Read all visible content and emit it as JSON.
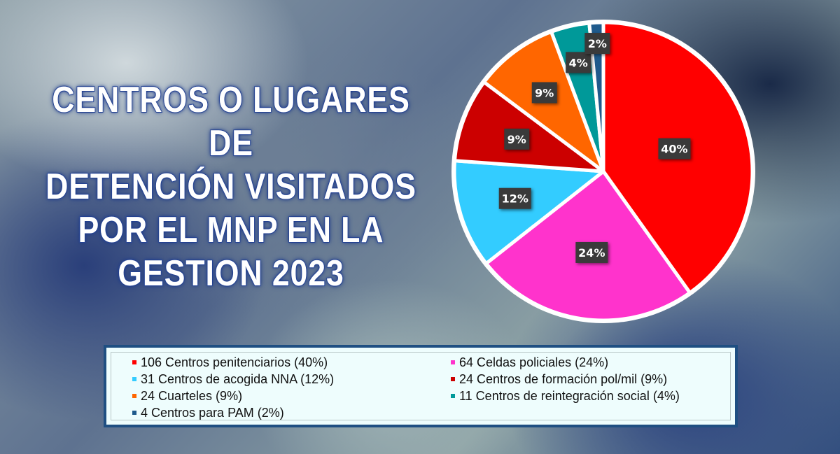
{
  "title_lines": [
    "CENTROS O LUGARES DE",
    "DETENCIÓN VISITADOS",
    "POR EL MNP EN LA",
    "GESTION 2023"
  ],
  "chart_data": {
    "type": "pie",
    "title": "CENTROS O LUGARES DE DETENCIÓN VISITADOS POR EL MNP EN LA GESTION 2023",
    "legend_position": "bottom",
    "slices": [
      {
        "label": "106 Centros penitenciarios (40%)",
        "value": 106,
        "percent_label": "40%",
        "color": "#ff0000"
      },
      {
        "label": "64 Celdas policiales (24%)",
        "value": 64,
        "percent_label": "24%",
        "color": "#ff33cc"
      },
      {
        "label": "31 Centros de acogida NNA (12%)",
        "value": 31,
        "percent_label": "12%",
        "color": "#33ccff"
      },
      {
        "label": "24 Centros de formación pol/mil (9%)",
        "value": 24,
        "percent_label": "9%",
        "color": "#cc0000"
      },
      {
        "label": "24 Cuarteles (9%)",
        "value": 24,
        "percent_label": "9%",
        "color": "#ff6600"
      },
      {
        "label": "11 Centros de reintegración social (4%)",
        "value": 11,
        "percent_label": "4%",
        "color": "#009999"
      },
      {
        "label": "4 Centros para PAM (2%)",
        "value": 4,
        "percent_label": "2%",
        "color": "#1f5a8c"
      }
    ]
  }
}
